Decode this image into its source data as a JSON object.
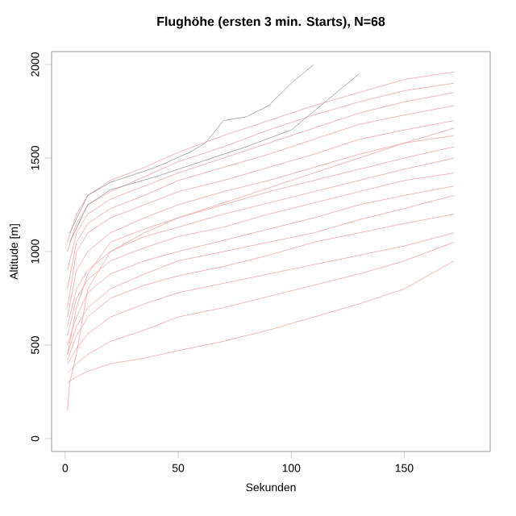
{
  "chart_data": {
    "type": "line",
    "title": "Flughöhe (ersten 3 min. Starts), N=68",
    "xlabel": "Sekunden",
    "ylabel": "Altitude [m]",
    "xlim": [
      -6,
      188
    ],
    "ylim": [
      -69,
      2069
    ],
    "xticks": [
      0,
      50,
      100,
      150
    ],
    "yticks": [
      0,
      500,
      1000,
      1500,
      2000
    ],
    "marker": "none",
    "line_style": "solid",
    "series": [
      {
        "color": "#f7a3a3",
        "x": [
          1,
          5,
          10,
          20,
          35,
          50,
          70,
          90,
          110,
          130,
          150,
          172
        ],
        "values": [
          300,
          330,
          360,
          400,
          430,
          470,
          520,
          580,
          650,
          720,
          800,
          950
        ]
      },
      {
        "color": "#f7a3a3",
        "x": [
          1,
          5,
          10,
          20,
          35,
          50,
          70,
          90,
          110,
          130,
          150,
          172
        ],
        "values": [
          350,
          400,
          450,
          520,
          580,
          650,
          700,
          760,
          820,
          880,
          950,
          1050
        ]
      },
      {
        "color": "#f7a3a3",
        "x": [
          1,
          5,
          10,
          20,
          35,
          50,
          70,
          90,
          110,
          130,
          150,
          172
        ],
        "values": [
          400,
          480,
          560,
          650,
          720,
          780,
          830,
          880,
          930,
          980,
          1030,
          1100
        ]
      },
      {
        "color": "#f7a3a3",
        "x": [
          1,
          5,
          10,
          20,
          35,
          50,
          70,
          90,
          110,
          130,
          150,
          172
        ],
        "values": [
          420,
          550,
          650,
          750,
          820,
          870,
          920,
          980,
          1050,
          1100,
          1150,
          1200
        ]
      },
      {
        "color": "#f7a3a3",
        "x": [
          1,
          5,
          10,
          20,
          35,
          50,
          70,
          90,
          110,
          130,
          150,
          172
        ],
        "values": [
          450,
          600,
          700,
          800,
          880,
          950,
          1000,
          1050,
          1100,
          1170,
          1230,
          1300
        ]
      },
      {
        "color": "#f7a3a3",
        "x": [
          1,
          5,
          10,
          20,
          35,
          50,
          70,
          90,
          110,
          130,
          150,
          172
        ],
        "values": [
          500,
          650,
          780,
          880,
          950,
          1000,
          1060,
          1120,
          1180,
          1250,
          1300,
          1350
        ]
      },
      {
        "color": "#f7a3a3",
        "x": [
          1,
          5,
          10,
          20,
          35,
          50,
          70,
          90,
          110,
          130,
          150,
          172
        ],
        "values": [
          550,
          750,
          850,
          950,
          1020,
          1080,
          1130,
          1200,
          1260,
          1320,
          1380,
          1420
        ]
      },
      {
        "color": "#f7a3a3",
        "x": [
          1,
          5,
          10,
          20,
          35,
          50,
          70,
          90,
          110,
          130,
          150,
          172
        ],
        "values": [
          600,
          800,
          900,
          1000,
          1080,
          1130,
          1200,
          1260,
          1320,
          1380,
          1440,
          1500
        ]
      },
      {
        "color": "#f7a3a3",
        "x": [
          1,
          5,
          10,
          20,
          35,
          50,
          70,
          90,
          110,
          130,
          150,
          172
        ],
        "values": [
          450,
          700,
          880,
          1050,
          1120,
          1180,
          1250,
          1320,
          1380,
          1440,
          1500,
          1560
        ]
      },
      {
        "color": "#f7a3a3",
        "x": [
          1,
          5,
          10,
          20,
          35,
          50,
          70,
          90,
          110,
          130,
          150,
          172
        ],
        "values": [
          650,
          900,
          1000,
          1100,
          1180,
          1250,
          1320,
          1380,
          1450,
          1520,
          1580,
          1620
        ]
      },
      {
        "color": "#f7a3a3",
        "x": [
          1,
          5,
          10,
          20,
          35,
          50,
          70,
          90,
          110,
          130,
          150,
          172
        ],
        "values": [
          700,
          1000,
          1100,
          1180,
          1250,
          1320,
          1380,
          1450,
          1520,
          1600,
          1650,
          1700
        ]
      },
      {
        "color": "#f7a3a3",
        "x": [
          1,
          5,
          10,
          20,
          35,
          50,
          70,
          90,
          110,
          130,
          150,
          172
        ],
        "values": [
          800,
          1050,
          1150,
          1230,
          1300,
          1380,
          1450,
          1520,
          1600,
          1680,
          1730,
          1780
        ]
      },
      {
        "color": "#f7a3a3",
        "x": [
          1,
          5,
          10,
          20,
          35,
          50,
          70,
          90,
          110,
          130,
          150,
          172
        ],
        "values": [
          900,
          1100,
          1200,
          1280,
          1350,
          1420,
          1500,
          1580,
          1660,
          1740,
          1800,
          1850
        ]
      },
      {
        "color": "#f7a3a3",
        "x": [
          1,
          5,
          10,
          20,
          35,
          50,
          70,
          90,
          110,
          130,
          150,
          172
        ],
        "values": [
          1000,
          1150,
          1250,
          1320,
          1400,
          1480,
          1560,
          1650,
          1730,
          1800,
          1860,
          1900
        ]
      },
      {
        "color": "#f7a3a3",
        "x": [
          1,
          5,
          10,
          20,
          35,
          50,
          70,
          90,
          110,
          130,
          150,
          172
        ],
        "values": [
          1050,
          1200,
          1300,
          1380,
          1450,
          1530,
          1620,
          1700,
          1780,
          1850,
          1920,
          1960
        ]
      },
      {
        "color": "#f7a3a3",
        "x": [
          1,
          2,
          5,
          10,
          20,
          35,
          50,
          70,
          90,
          110,
          130,
          150,
          172
        ],
        "values": [
          150,
          300,
          450,
          800,
          1000,
          1100,
          1180,
          1260,
          1340,
          1420,
          1500,
          1580,
          1660
        ]
      },
      {
        "color": "#999999",
        "x": [
          2,
          10,
          20,
          40,
          55,
          62,
          70,
          80,
          90,
          100,
          110
        ],
        "values": [
          1100,
          1300,
          1370,
          1450,
          1530,
          1580,
          1700,
          1720,
          1780,
          1900,
          2000
        ]
      },
      {
        "color": "#999999",
        "x": [
          2,
          10,
          20,
          40,
          60,
          80,
          100,
          120,
          130
        ],
        "values": [
          1050,
          1250,
          1330,
          1400,
          1480,
          1560,
          1650,
          1850,
          1950
        ]
      }
    ]
  }
}
